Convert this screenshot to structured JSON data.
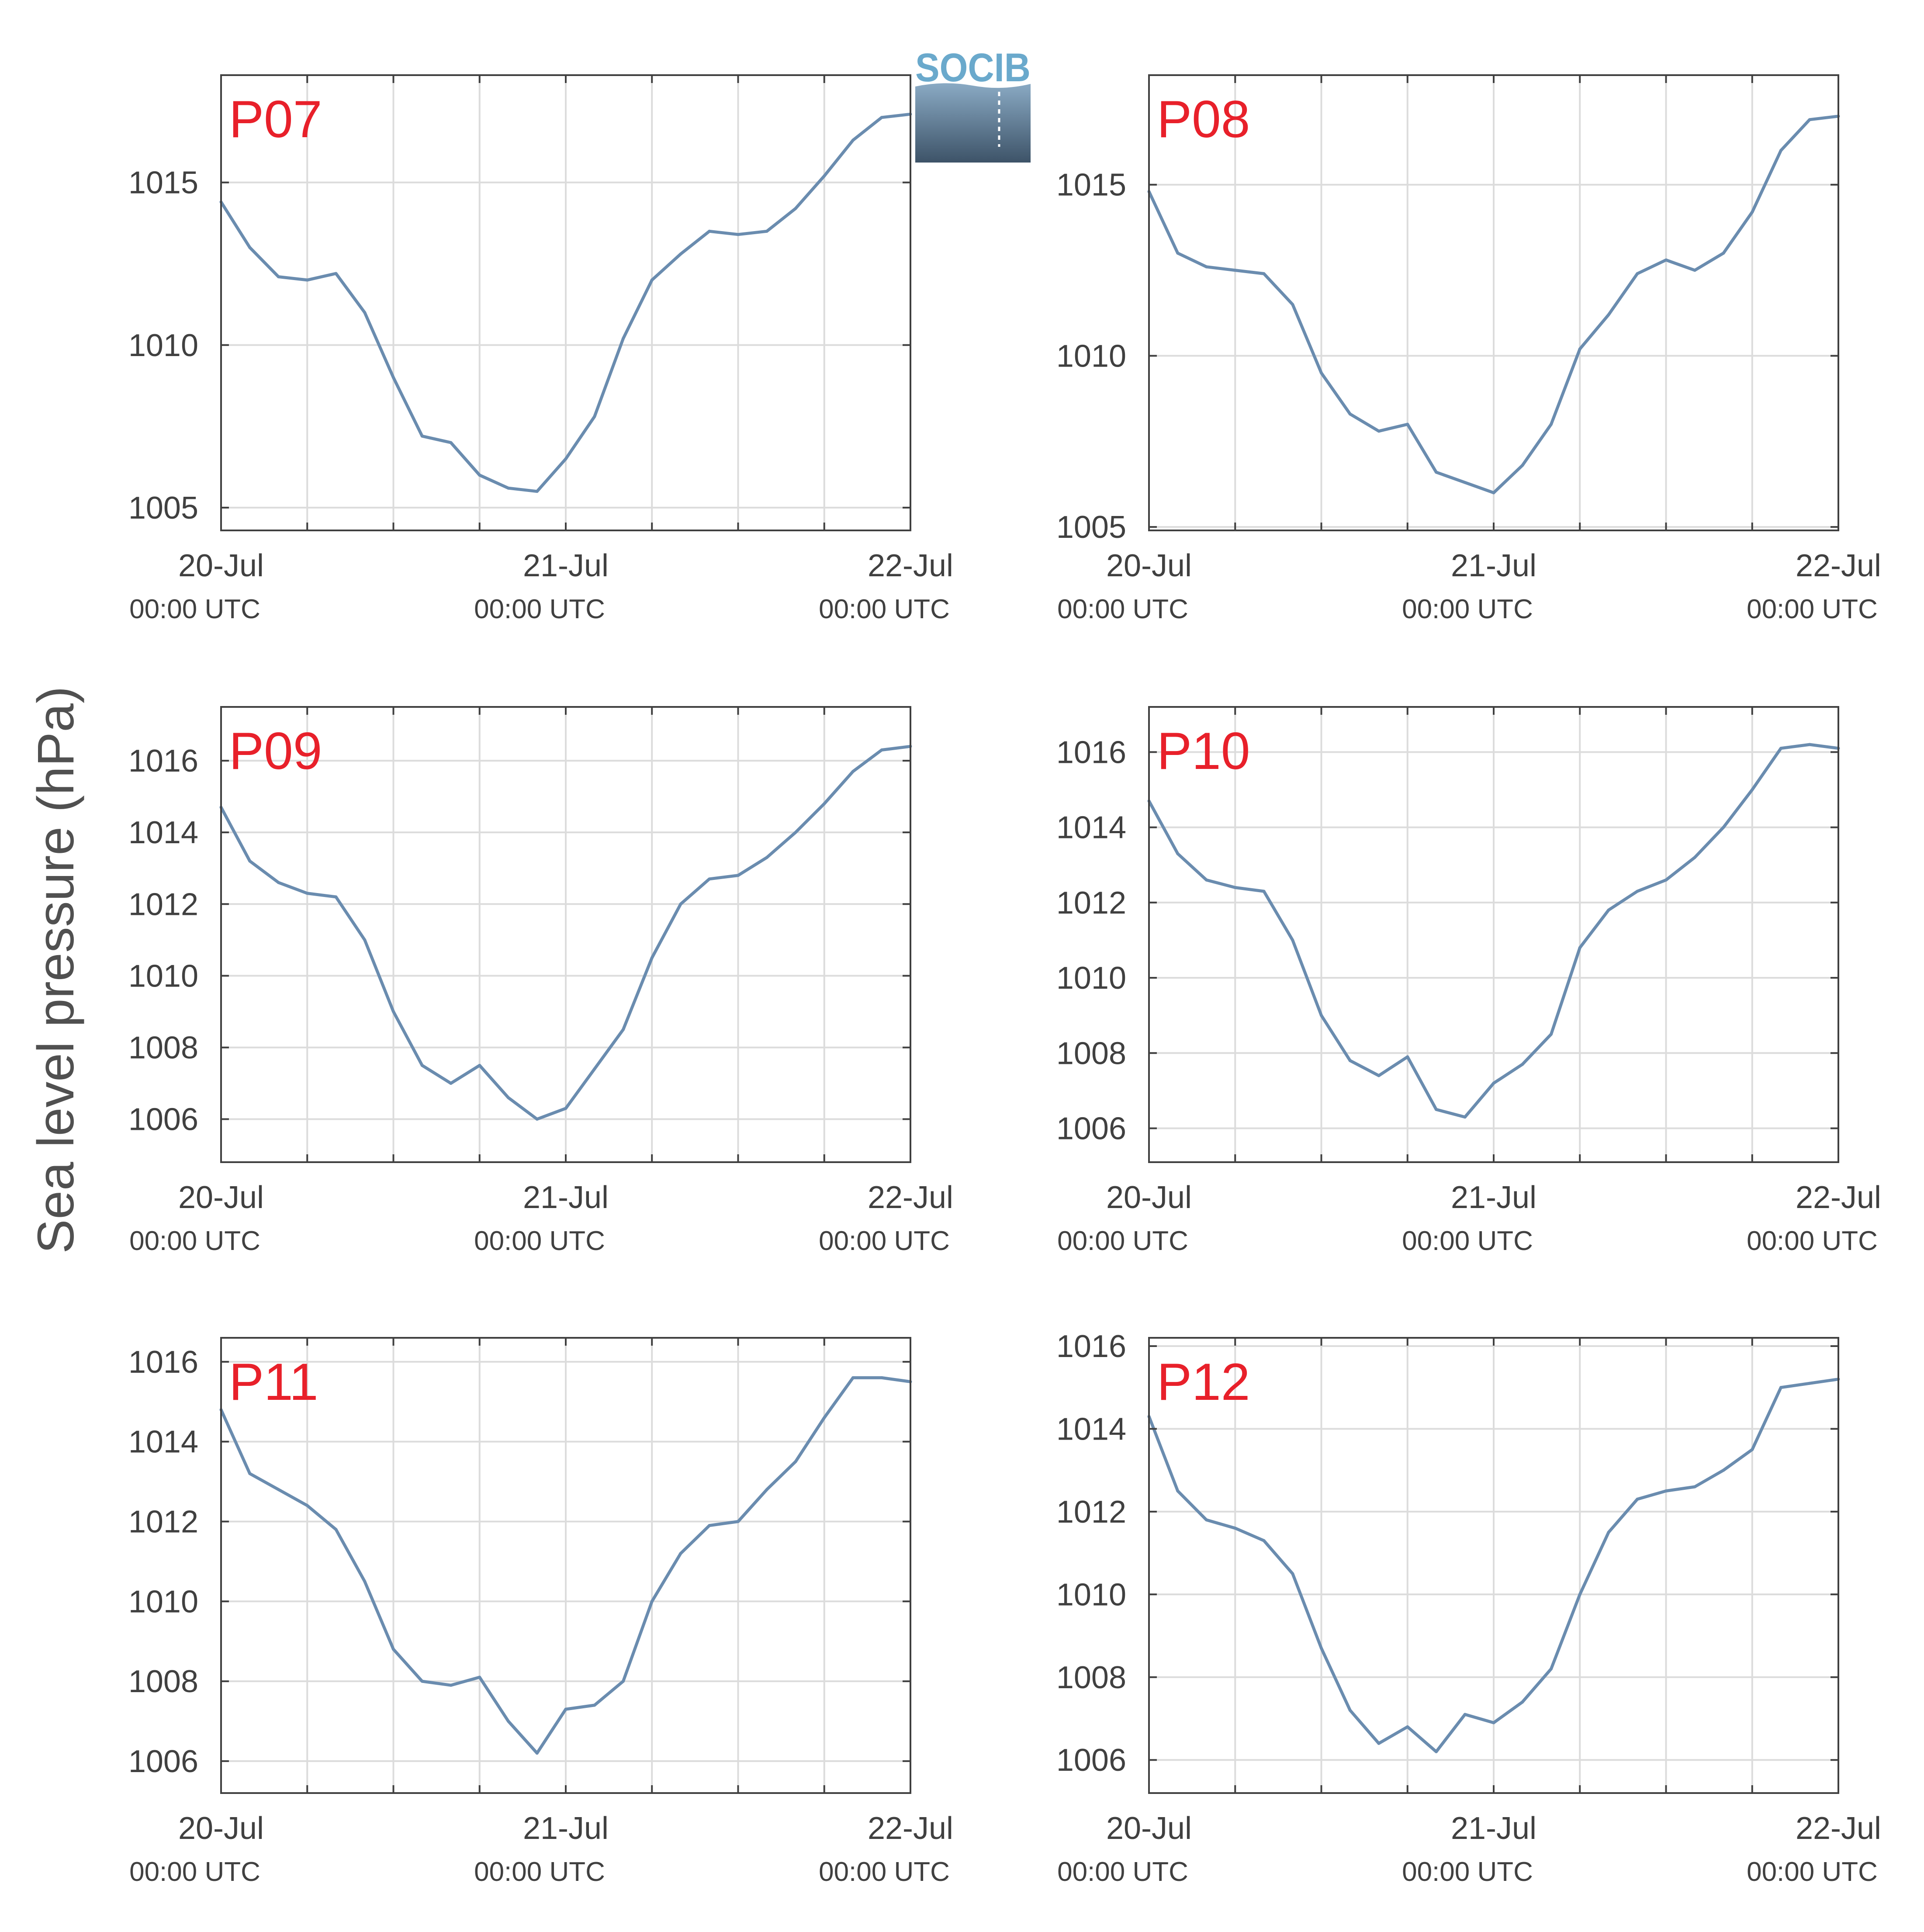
{
  "ylabel": "Sea level pressure (hPa)",
  "logo": {
    "text": "SOCIB"
  },
  "colors": {
    "line": "#6a8caf",
    "panel_label": "#e8202a",
    "grid": "#dcdcdc",
    "axis": "#404040",
    "logo": "#6aa9cc"
  },
  "chart_data": [
    {
      "type": "line",
      "label": "P07",
      "x_ticks": [
        "20-Jul",
        "21-Jul",
        "22-Jul"
      ],
      "x_tick_sublabel": "00:00 UTC",
      "x_range": [
        "20-Jul 00:00",
        "22-Jul 00:00"
      ],
      "ylim": [
        1004.3,
        1018.3
      ],
      "yticks": [
        1005,
        1010,
        1015
      ],
      "x": [
        0,
        2,
        4,
        6,
        8,
        10,
        12,
        14,
        16,
        18,
        20,
        22,
        24,
        26,
        28,
        30,
        32,
        34,
        36,
        38,
        40,
        42,
        44,
        46,
        48
      ],
      "values": [
        1014.4,
        1013.0,
        1012.1,
        1012.0,
        1012.2,
        1011.0,
        1009.0,
        1007.2,
        1007.0,
        1006.0,
        1005.6,
        1005.5,
        1006.5,
        1007.8,
        1010.2,
        1012.0,
        1012.8,
        1013.5,
        1013.4,
        1013.5,
        1014.2,
        1015.2,
        1016.3,
        1017.0,
        1017.1
      ]
    },
    {
      "type": "line",
      "label": "P08",
      "x_ticks": [
        "20-Jul",
        "21-Jul",
        "22-Jul"
      ],
      "x_tick_sublabel": "00:00 UTC",
      "x_range": [
        "20-Jul 00:00",
        "22-Jul 00:00"
      ],
      "ylim": [
        1004.9,
        1018.2
      ],
      "yticks": [
        1005,
        1010,
        1015
      ],
      "x": [
        0,
        2,
        4,
        6,
        8,
        10,
        12,
        14,
        16,
        18,
        20,
        22,
        24,
        26,
        28,
        30,
        32,
        34,
        36,
        38,
        40,
        42,
        44,
        46,
        48
      ],
      "values": [
        1014.8,
        1013.0,
        1012.6,
        1012.5,
        1012.4,
        1011.5,
        1009.5,
        1008.3,
        1007.8,
        1008.0,
        1006.6,
        1006.3,
        1006.0,
        1006.8,
        1008.0,
        1010.2,
        1011.2,
        1012.4,
        1012.8,
        1012.5,
        1013.0,
        1014.2,
        1016.0,
        1016.9,
        1017.0
      ]
    },
    {
      "type": "line",
      "label": "P09",
      "x_ticks": [
        "20-Jul",
        "21-Jul",
        "22-Jul"
      ],
      "x_tick_sublabel": "00:00 UTC",
      "x_range": [
        "20-Jul 00:00",
        "22-Jul 00:00"
      ],
      "ylim": [
        1004.8,
        1017.5
      ],
      "yticks": [
        1006,
        1008,
        1010,
        1012,
        1014,
        1016
      ],
      "x": [
        0,
        2,
        4,
        6,
        8,
        10,
        12,
        14,
        16,
        18,
        20,
        22,
        24,
        26,
        28,
        30,
        32,
        34,
        36,
        38,
        40,
        42,
        44,
        46,
        48
      ],
      "values": [
        1014.7,
        1013.2,
        1012.6,
        1012.3,
        1012.2,
        1011.0,
        1009.0,
        1007.5,
        1007.0,
        1007.5,
        1006.6,
        1006.0,
        1006.3,
        1007.4,
        1008.5,
        1010.5,
        1012.0,
        1012.7,
        1012.8,
        1013.3,
        1014.0,
        1014.8,
        1015.7,
        1016.3,
        1016.4
      ]
    },
    {
      "type": "line",
      "label": "P10",
      "x_ticks": [
        "20-Jul",
        "21-Jul",
        "22-Jul"
      ],
      "x_tick_sublabel": "00:00 UTC",
      "x_range": [
        "20-Jul 00:00",
        "22-Jul 00:00"
      ],
      "ylim": [
        1005.1,
        1017.2
      ],
      "yticks": [
        1006,
        1008,
        1010,
        1012,
        1014,
        1016
      ],
      "x": [
        0,
        2,
        4,
        6,
        8,
        10,
        12,
        14,
        16,
        18,
        20,
        22,
        24,
        26,
        28,
        30,
        32,
        34,
        36,
        38,
        40,
        42,
        44,
        46,
        48
      ],
      "values": [
        1014.7,
        1013.3,
        1012.6,
        1012.4,
        1012.3,
        1011.0,
        1009.0,
        1007.8,
        1007.4,
        1007.9,
        1006.5,
        1006.3,
        1007.2,
        1007.7,
        1008.5,
        1010.8,
        1011.8,
        1012.3,
        1012.6,
        1013.2,
        1014.0,
        1015.0,
        1016.1,
        1016.2,
        1016.1
      ]
    },
    {
      "type": "line",
      "label": "P11",
      "x_ticks": [
        "20-Jul",
        "21-Jul",
        "22-Jul"
      ],
      "x_tick_sublabel": "00:00 UTC",
      "x_range": [
        "20-Jul 00:00",
        "22-Jul 00:00"
      ],
      "ylim": [
        1005.2,
        1016.6
      ],
      "yticks": [
        1006,
        1008,
        1010,
        1012,
        1014,
        1016
      ],
      "x": [
        0,
        2,
        4,
        6,
        8,
        10,
        12,
        14,
        16,
        18,
        20,
        22,
        24,
        26,
        28,
        30,
        32,
        34,
        36,
        38,
        40,
        42,
        44,
        46,
        48
      ],
      "values": [
        1014.8,
        1013.2,
        1012.8,
        1012.4,
        1011.8,
        1010.5,
        1008.8,
        1008.0,
        1007.9,
        1008.1,
        1007.0,
        1006.2,
        1007.3,
        1007.4,
        1008.0,
        1010.0,
        1011.2,
        1011.9,
        1012.0,
        1012.8,
        1013.5,
        1014.6,
        1015.6,
        1015.6,
        1015.5
      ]
    },
    {
      "type": "line",
      "label": "P12",
      "x_ticks": [
        "20-Jul",
        "21-Jul",
        "22-Jul"
      ],
      "x_tick_sublabel": "00:00 UTC",
      "x_range": [
        "20-Jul 00:00",
        "22-Jul 00:00"
      ],
      "ylim": [
        1005.2,
        1016.2
      ],
      "yticks": [
        1006,
        1008,
        1010,
        1012,
        1014,
        1016
      ],
      "x": [
        0,
        2,
        4,
        6,
        8,
        10,
        12,
        14,
        16,
        18,
        20,
        22,
        24,
        26,
        28,
        30,
        32,
        34,
        36,
        38,
        40,
        42,
        44,
        46,
        48
      ],
      "values": [
        1014.3,
        1012.5,
        1011.8,
        1011.6,
        1011.3,
        1010.5,
        1008.7,
        1007.2,
        1006.4,
        1006.8,
        1006.2,
        1007.1,
        1006.9,
        1007.4,
        1008.2,
        1010.0,
        1011.5,
        1012.3,
        1012.5,
        1012.6,
        1013.0,
        1013.5,
        1015.0,
        1015.1,
        1015.2
      ]
    }
  ]
}
